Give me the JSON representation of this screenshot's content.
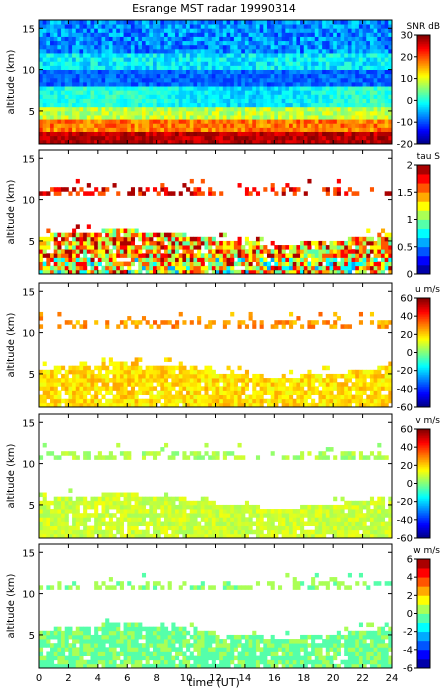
{
  "figure": {
    "title": "Esrange MST radar 19990314",
    "xlabel": "time (UT)",
    "ylabel": "altitude (km)"
  },
  "chart_data": [
    {
      "type": "heatmap",
      "quantity": "snr",
      "colorbar_label": "SNR dB",
      "ylabel": "altitude (km)",
      "x_range": [
        0,
        24
      ],
      "y_range": [
        1,
        16
      ],
      "x_ticks": [
        0,
        2,
        4,
        6,
        8,
        10,
        12,
        14,
        16,
        18,
        20,
        22,
        24
      ],
      "y_ticks": [
        5,
        10,
        15
      ],
      "color_range": [
        -20,
        30
      ],
      "colorbar_ticks": [
        -20,
        -10,
        0,
        10,
        20,
        30
      ],
      "colormap": "jet"
    },
    {
      "type": "heatmap",
      "quantity": "tau",
      "colorbar_label": "tau S",
      "ylabel": "altitude (km)",
      "x_range": [
        0,
        24
      ],
      "y_range": [
        1,
        16
      ],
      "x_ticks": [
        0,
        2,
        4,
        6,
        8,
        10,
        12,
        14,
        16,
        18,
        20,
        22,
        24
      ],
      "y_ticks": [
        5,
        10,
        15
      ],
      "color_range": [
        0,
        2
      ],
      "colorbar_ticks": [
        0,
        0.5,
        1,
        1.5,
        2
      ],
      "colormap": "jet-banded"
    },
    {
      "type": "heatmap",
      "quantity": "u",
      "colorbar_label": "u m/s",
      "ylabel": "altitude (km)",
      "x_range": [
        0,
        24
      ],
      "y_range": [
        1,
        16
      ],
      "x_ticks": [
        0,
        2,
        4,
        6,
        8,
        10,
        12,
        14,
        16,
        18,
        20,
        22,
        24
      ],
      "y_ticks": [
        5,
        10,
        15
      ],
      "color_range": [
        -60,
        60
      ],
      "colorbar_ticks": [
        -60,
        -40,
        -20,
        0,
        20,
        40,
        60
      ],
      "colormap": "jet"
    },
    {
      "type": "heatmap",
      "quantity": "v",
      "colorbar_label": "v m/s",
      "ylabel": "altitude (km)",
      "x_range": [
        0,
        24
      ],
      "y_range": [
        1,
        16
      ],
      "x_ticks": [
        0,
        2,
        4,
        6,
        8,
        10,
        12,
        14,
        16,
        18,
        20,
        22,
        24
      ],
      "y_ticks": [
        5,
        10,
        15
      ],
      "color_range": [
        -60,
        60
      ],
      "colorbar_ticks": [
        -60,
        -40,
        -20,
        0,
        20,
        40,
        60
      ],
      "colormap": "jet"
    },
    {
      "type": "heatmap",
      "quantity": "w",
      "colorbar_label": "w m/s",
      "ylabel": "altitude (km)",
      "xlabel": "time (UT)",
      "x_range": [
        0,
        24
      ],
      "y_range": [
        1,
        16
      ],
      "x_ticks": [
        0,
        2,
        4,
        6,
        8,
        10,
        12,
        14,
        16,
        18,
        20,
        22,
        24
      ],
      "y_ticks": [
        5,
        10,
        15
      ],
      "color_range": [
        -6,
        6
      ],
      "colorbar_ticks": [
        -6,
        -4,
        -2,
        0,
        2,
        4,
        6
      ],
      "colormap": "jet-banded"
    }
  ]
}
